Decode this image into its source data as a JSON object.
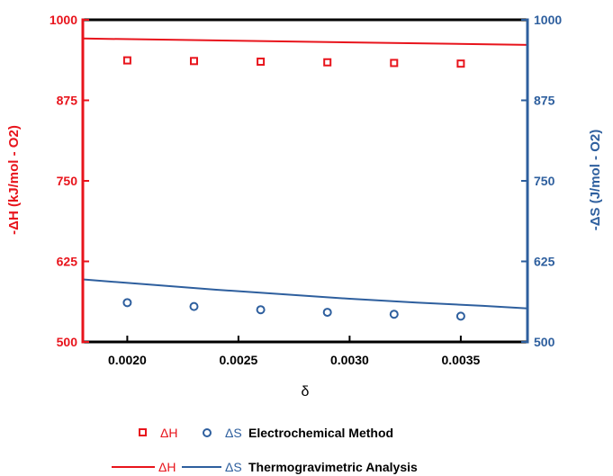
{
  "chart_data": {
    "type": "scatter",
    "title": "",
    "xlabel": "δ",
    "ylabel_left": "-ΔH (kJ/mol - O2)",
    "ylabel_right": "-ΔS (J/mol - O2)",
    "xlim": [
      0.0018,
      0.0038
    ],
    "ylim_left": [
      500,
      1000
    ],
    "ylim_right": [
      500,
      1000
    ],
    "x_ticks": [
      0.002,
      0.0025,
      0.003,
      0.0035
    ],
    "x_tick_labels": [
      "0.0020",
      "0.0025",
      "0.0030",
      "0.0035"
    ],
    "y_ticks": [
      500,
      625,
      750,
      875,
      1000
    ],
    "y_tick_labels": [
      "500",
      "625",
      "750",
      "875",
      "1000"
    ],
    "grid": false,
    "legend_position": "bottom",
    "series": [
      {
        "name": "ΔH",
        "legend_group": "Electrochemical Method",
        "marker": "square",
        "axis": "left",
        "color": "#e8141c",
        "x": [
          0.002,
          0.0023,
          0.0026,
          0.0029,
          0.0032,
          0.0035
        ],
        "y": [
          937,
          936,
          935,
          934,
          933,
          932
        ]
      },
      {
        "name": "ΔS",
        "legend_group": "Electrochemical Method",
        "marker": "circle",
        "axis": "right",
        "color": "#2e5f9e",
        "x": [
          0.002,
          0.0023,
          0.0026,
          0.0029,
          0.0032,
          0.0035
        ],
        "y": [
          561,
          555,
          550,
          546,
          543,
          540
        ]
      },
      {
        "name": "ΔH",
        "legend_group": "Thermogravimetric Analysis",
        "marker": "line",
        "axis": "left",
        "color": "#e8141c",
        "x": [
          0.0018,
          0.0038
        ],
        "y": [
          971,
          961
        ]
      },
      {
        "name": "ΔS",
        "legend_group": "Thermogravimetric Analysis",
        "marker": "line",
        "axis": "right",
        "color": "#2e5f9e",
        "x": [
          0.0018,
          0.0021,
          0.0024,
          0.0027,
          0.003,
          0.0033,
          0.0036,
          0.0038
        ],
        "y": [
          597,
          589,
          581,
          574,
          567,
          561,
          556,
          552
        ]
      }
    ],
    "legend": {
      "rows": [
        {
          "label": "Electrochemical Method",
          "entries": [
            "ΔH",
            "ΔS"
          ]
        },
        {
          "label": "Thermogravimetric Analysis",
          "entries": [
            "ΔH",
            "ΔS"
          ]
        }
      ]
    },
    "colors": {
      "left_axis": "#e8141c",
      "right_axis": "#2e5f9e",
      "top_axis": "#000000",
      "bottom_axis": "#000000"
    }
  }
}
